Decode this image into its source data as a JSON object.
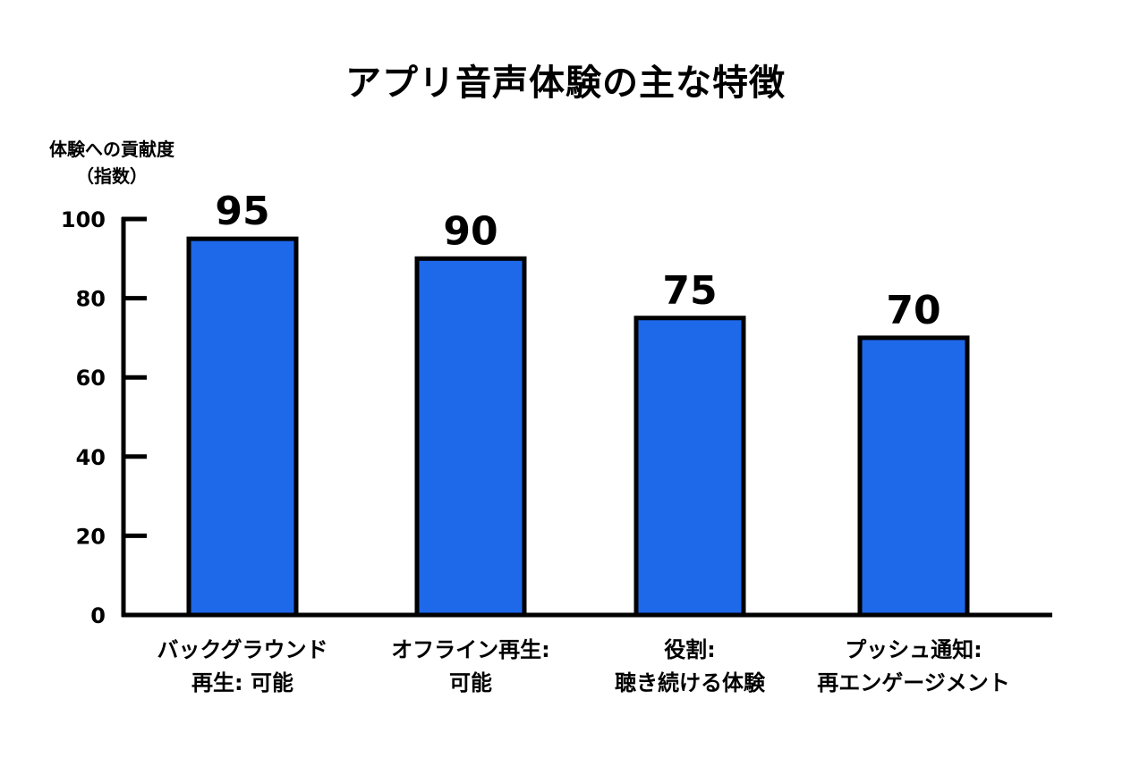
{
  "chart_data": {
    "type": "bar",
    "title": "アプリ音声体験の主な特徴",
    "ylabel_lines": [
      "体験への貢献度",
      "（指数）"
    ],
    "xlabel": "",
    "categories": [
      [
        "バックグラウンド",
        "再生: 可能"
      ],
      [
        "オフライン再生:",
        "可能"
      ],
      [
        "役割:",
        "聴き続ける体験"
      ],
      [
        "プッシュ通知:",
        "再エンゲージメント"
      ]
    ],
    "values": [
      95,
      90,
      75,
      70
    ],
    "value_labels": [
      "95",
      "90",
      "75",
      "70"
    ],
    "ylim": [
      0,
      100
    ],
    "yticks": [
      0,
      20,
      40,
      60,
      80,
      100
    ],
    "grid": false,
    "colors": {
      "bar": "#1e68ea",
      "outline": "#000000"
    }
  }
}
